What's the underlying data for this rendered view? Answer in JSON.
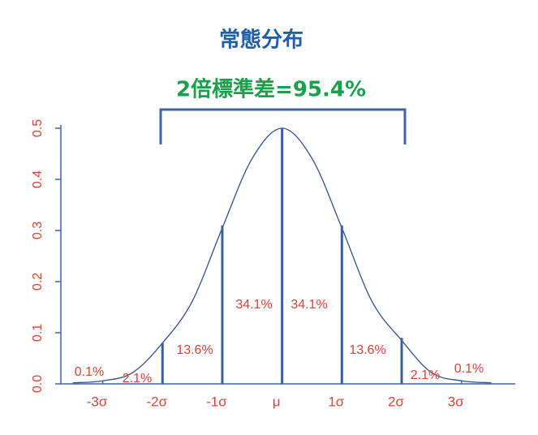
{
  "chart_data": {
    "type": "line",
    "title": "常態分布",
    "subtitle": "2倍標準差=95.4%",
    "x": [
      -3.5,
      -3,
      -2.5,
      -2,
      -1.5,
      -1,
      -0.5,
      0,
      0.5,
      1,
      1.5,
      2,
      2.5,
      3,
      3.5
    ],
    "series": [
      {
        "color": "#2f4f8f",
        "values": [
          0.002,
          0.006,
          0.022,
          0.08,
          0.162,
          0.305,
          0.441,
          0.5,
          0.441,
          0.305,
          0.162,
          0.085,
          0.022,
          0.006,
          0.002
        ]
      }
    ],
    "vlines": {
      "x": [
        -2,
        -1,
        0,
        1,
        2
      ],
      "values": [
        0.08,
        0.31,
        0.5,
        0.31,
        0.09
      ],
      "color": "#3a5fa0"
    },
    "annotations": [
      "0.1%",
      "2.1%",
      "13.6%",
      "34.1%",
      "34.1%",
      "13.6%",
      "2.1%",
      "0.1%"
    ],
    "xlim": [
      -3.7,
      3.9
    ],
    "xticks": [
      {
        "value": -3,
        "label": "-3σ"
      },
      {
        "value": -2,
        "label": "-2σ"
      },
      {
        "value": -1,
        "label": "-1σ"
      },
      {
        "value": 0,
        "label": "μ"
      },
      {
        "value": 1,
        "label": "1σ"
      },
      {
        "value": 2,
        "label": "2σ"
      },
      {
        "value": 3,
        "label": "3σ"
      }
    ],
    "ylim": [
      0,
      0.5
    ],
    "yticks": [
      {
        "value": 0,
        "label": "0.0"
      },
      0.1,
      0.2,
      0.3,
      0.4,
      0.5
    ]
  }
}
